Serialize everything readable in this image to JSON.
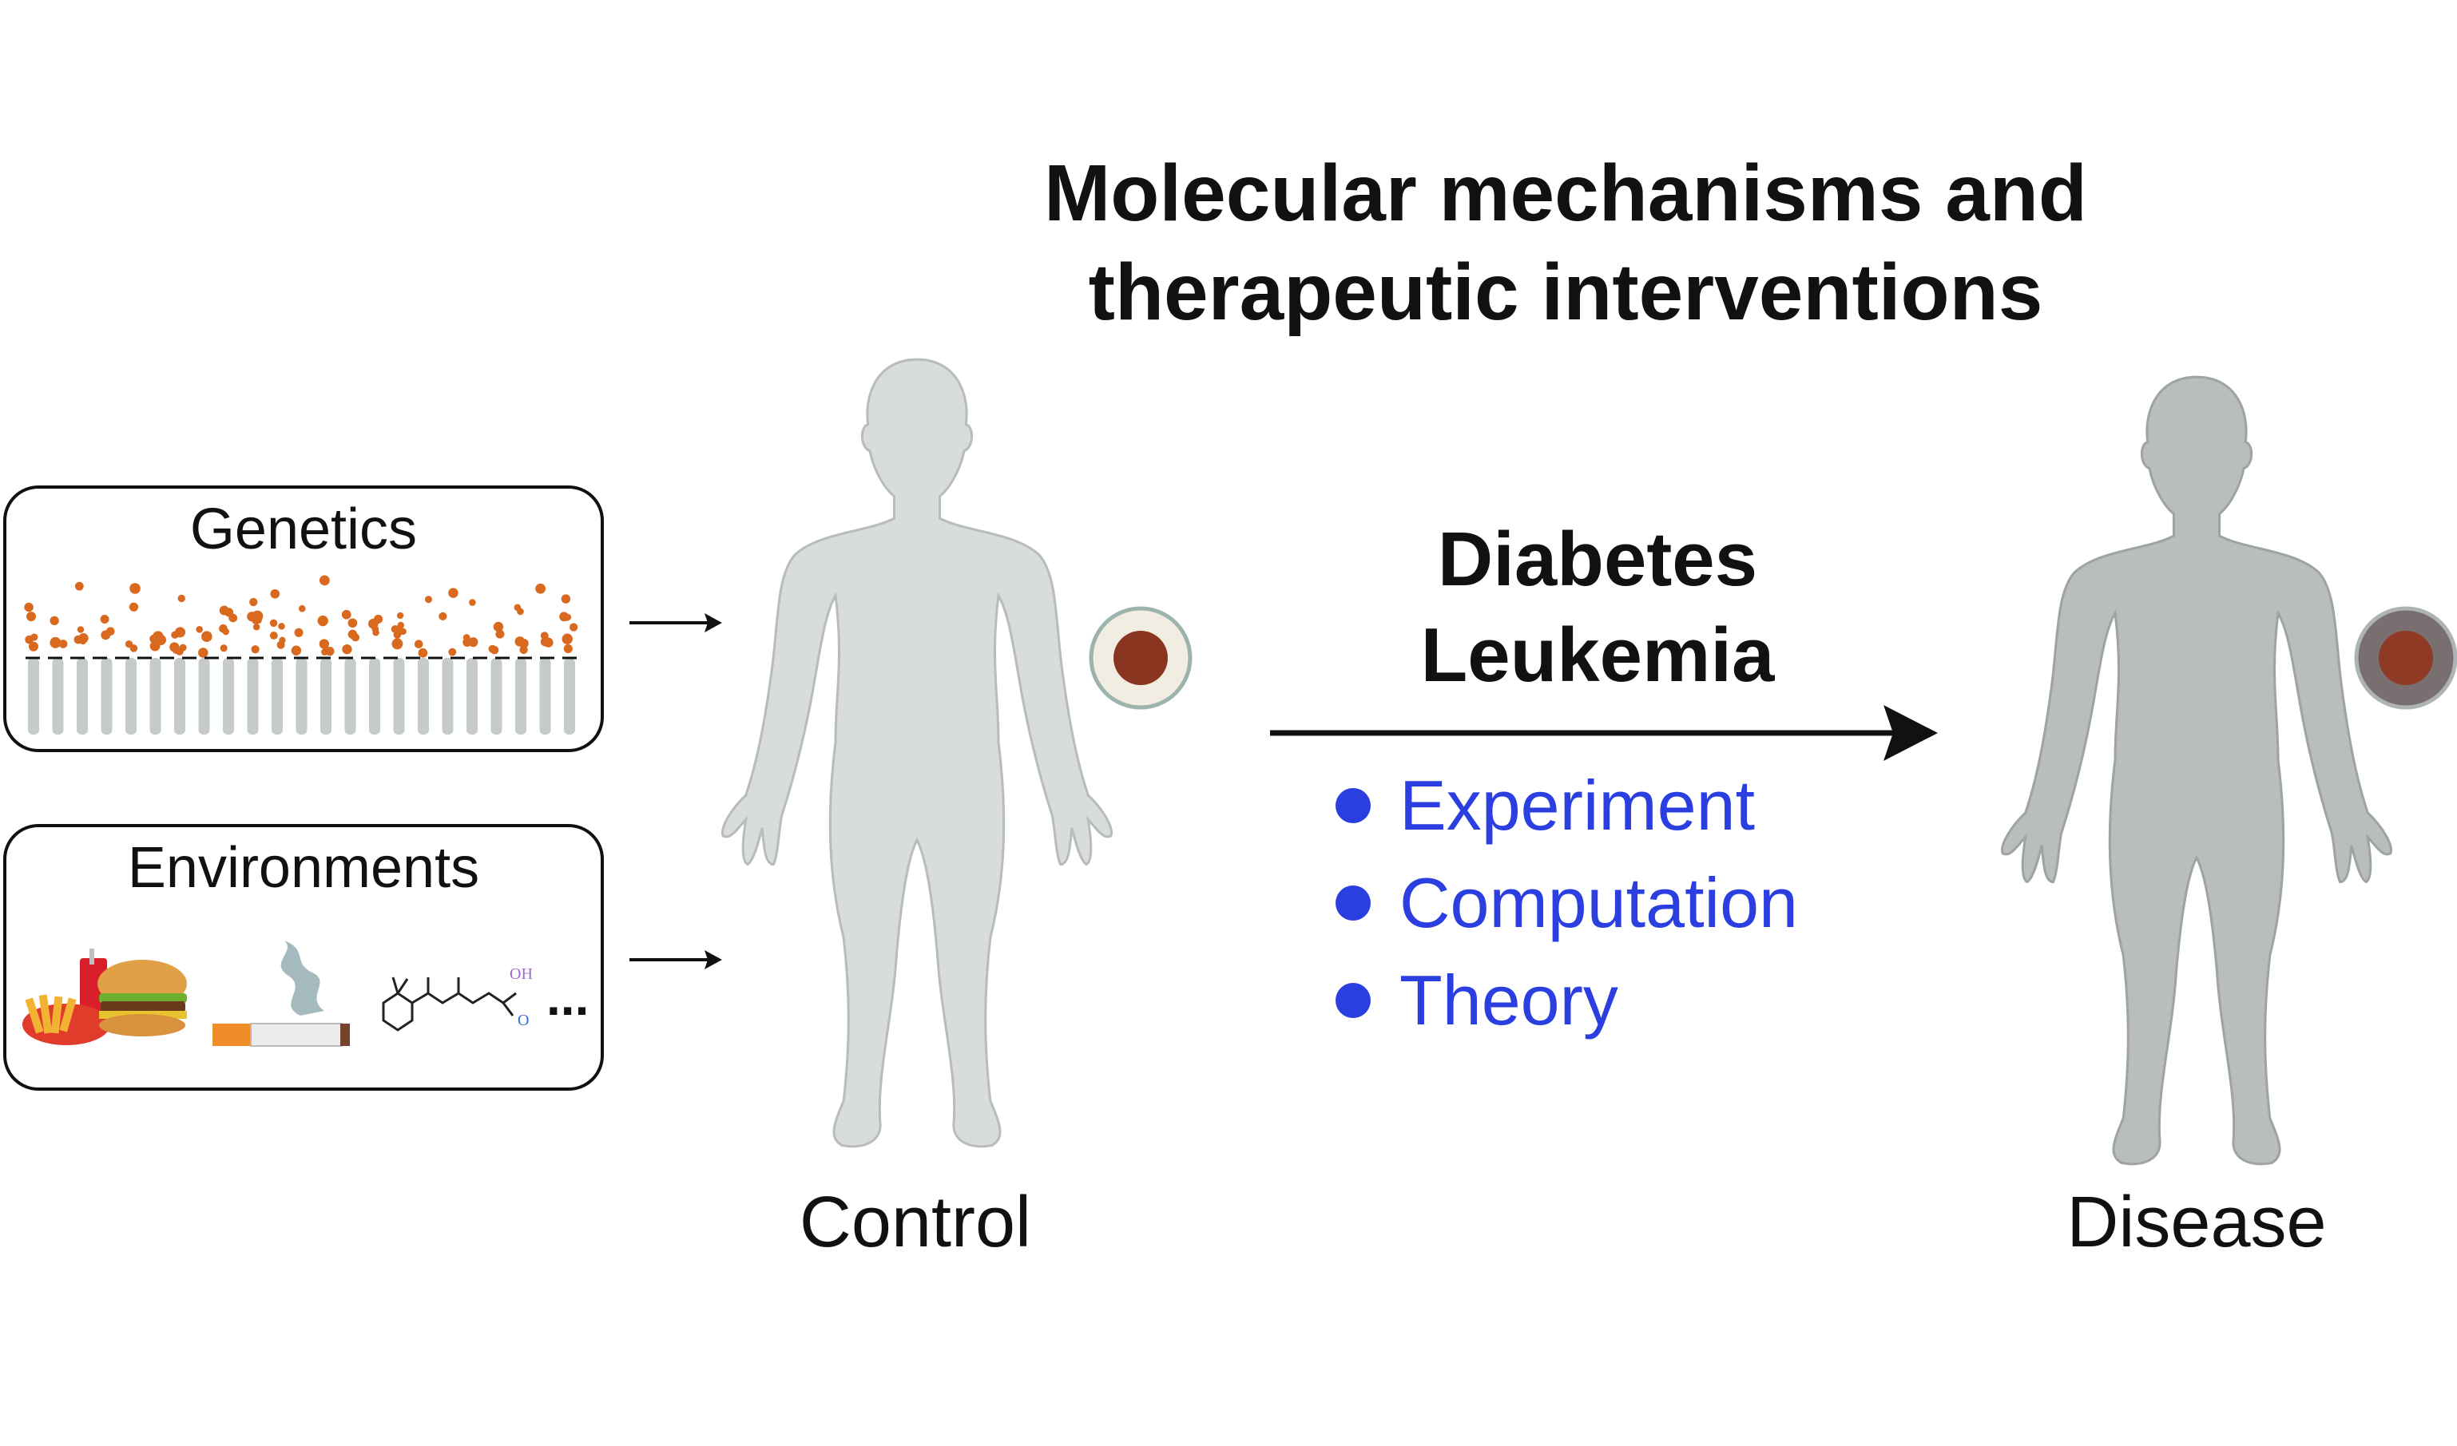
{
  "title_lines": [
    "Molecular mechanisms and",
    "therapeutic interventions"
  ],
  "factors": {
    "genetics_label": "Genetics",
    "environments_label": "Environments",
    "environment_ellipsis": "...",
    "molecule_labels": [
      "OH",
      "O"
    ]
  },
  "states": {
    "control_label": "Control",
    "disease_label": "Disease"
  },
  "diseases": [
    "Diabetes",
    "Leukemia"
  ],
  "methods": [
    "Experiment",
    "Computation",
    "Theory"
  ],
  "colors": {
    "method_blue": "#2b3fe0",
    "control_body": "#d9dcdc",
    "disease_body": "#b9bdbd",
    "genetics_dots": "#d9691e",
    "chromosome_bars": "#c5cbcb"
  }
}
